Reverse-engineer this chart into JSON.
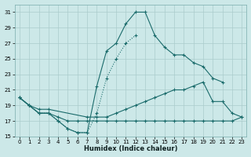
{
  "xlabel": "Humidex (Indice chaleur)",
  "bg_color": "#cce8e8",
  "line_color": "#1a6b6b",
  "grid_color": "#aacccc",
  "xlim": [
    -0.5,
    23.5
  ],
  "ylim": [
    15,
    32
  ],
  "xticks": [
    0,
    1,
    2,
    3,
    4,
    5,
    6,
    7,
    8,
    9,
    10,
    11,
    12,
    13,
    14,
    15,
    16,
    17,
    18,
    19,
    20,
    21,
    22,
    23
  ],
  "yticks": [
    15,
    17,
    19,
    21,
    23,
    25,
    27,
    29,
    31
  ],
  "curves": [
    {
      "x": [
        0,
        1,
        2,
        3,
        4,
        5,
        6,
        7,
        8,
        9,
        10,
        11,
        12,
        13,
        14,
        15,
        16,
        17,
        18,
        19,
        20,
        21
      ],
      "y": [
        20,
        19,
        18,
        18,
        17,
        16,
        15.5,
        15.5,
        21.5,
        26,
        27,
        29.5,
        31,
        31,
        28,
        26.5,
        25.5,
        25.5,
        24.5,
        24,
        22.5,
        22
      ],
      "style": "solid"
    },
    {
      "x": [
        0,
        1,
        2,
        3,
        4,
        5,
        6,
        7,
        8,
        9,
        10,
        11,
        12
      ],
      "y": [
        20,
        19,
        18,
        18,
        17,
        16,
        15.5,
        15.5,
        18,
        22.5,
        25,
        27,
        28
      ],
      "style": "dotted"
    },
    {
      "x": [
        0,
        1,
        2,
        3,
        7,
        8,
        9,
        10,
        11,
        12,
        13,
        14,
        15,
        16,
        17,
        18,
        19,
        20,
        21,
        22,
        23
      ],
      "y": [
        20,
        19,
        18.5,
        18.5,
        17.5,
        17.5,
        17.5,
        18,
        18.5,
        19,
        19.5,
        20,
        20.5,
        21,
        21,
        21.5,
        22,
        19.5,
        19.5,
        18,
        17.5
      ],
      "style": "solid"
    },
    {
      "x": [
        0,
        1,
        2,
        3,
        4,
        5,
        6,
        7,
        8,
        9,
        10,
        11,
        12,
        13,
        14,
        15,
        16,
        17,
        18,
        19,
        20,
        21,
        22,
        23
      ],
      "y": [
        20,
        19,
        18,
        18,
        17.5,
        17,
        17,
        17,
        17,
        17,
        17,
        17,
        17,
        17,
        17,
        17,
        17,
        17,
        17,
        17,
        17,
        17,
        17,
        17.5
      ],
      "style": "solid"
    }
  ]
}
